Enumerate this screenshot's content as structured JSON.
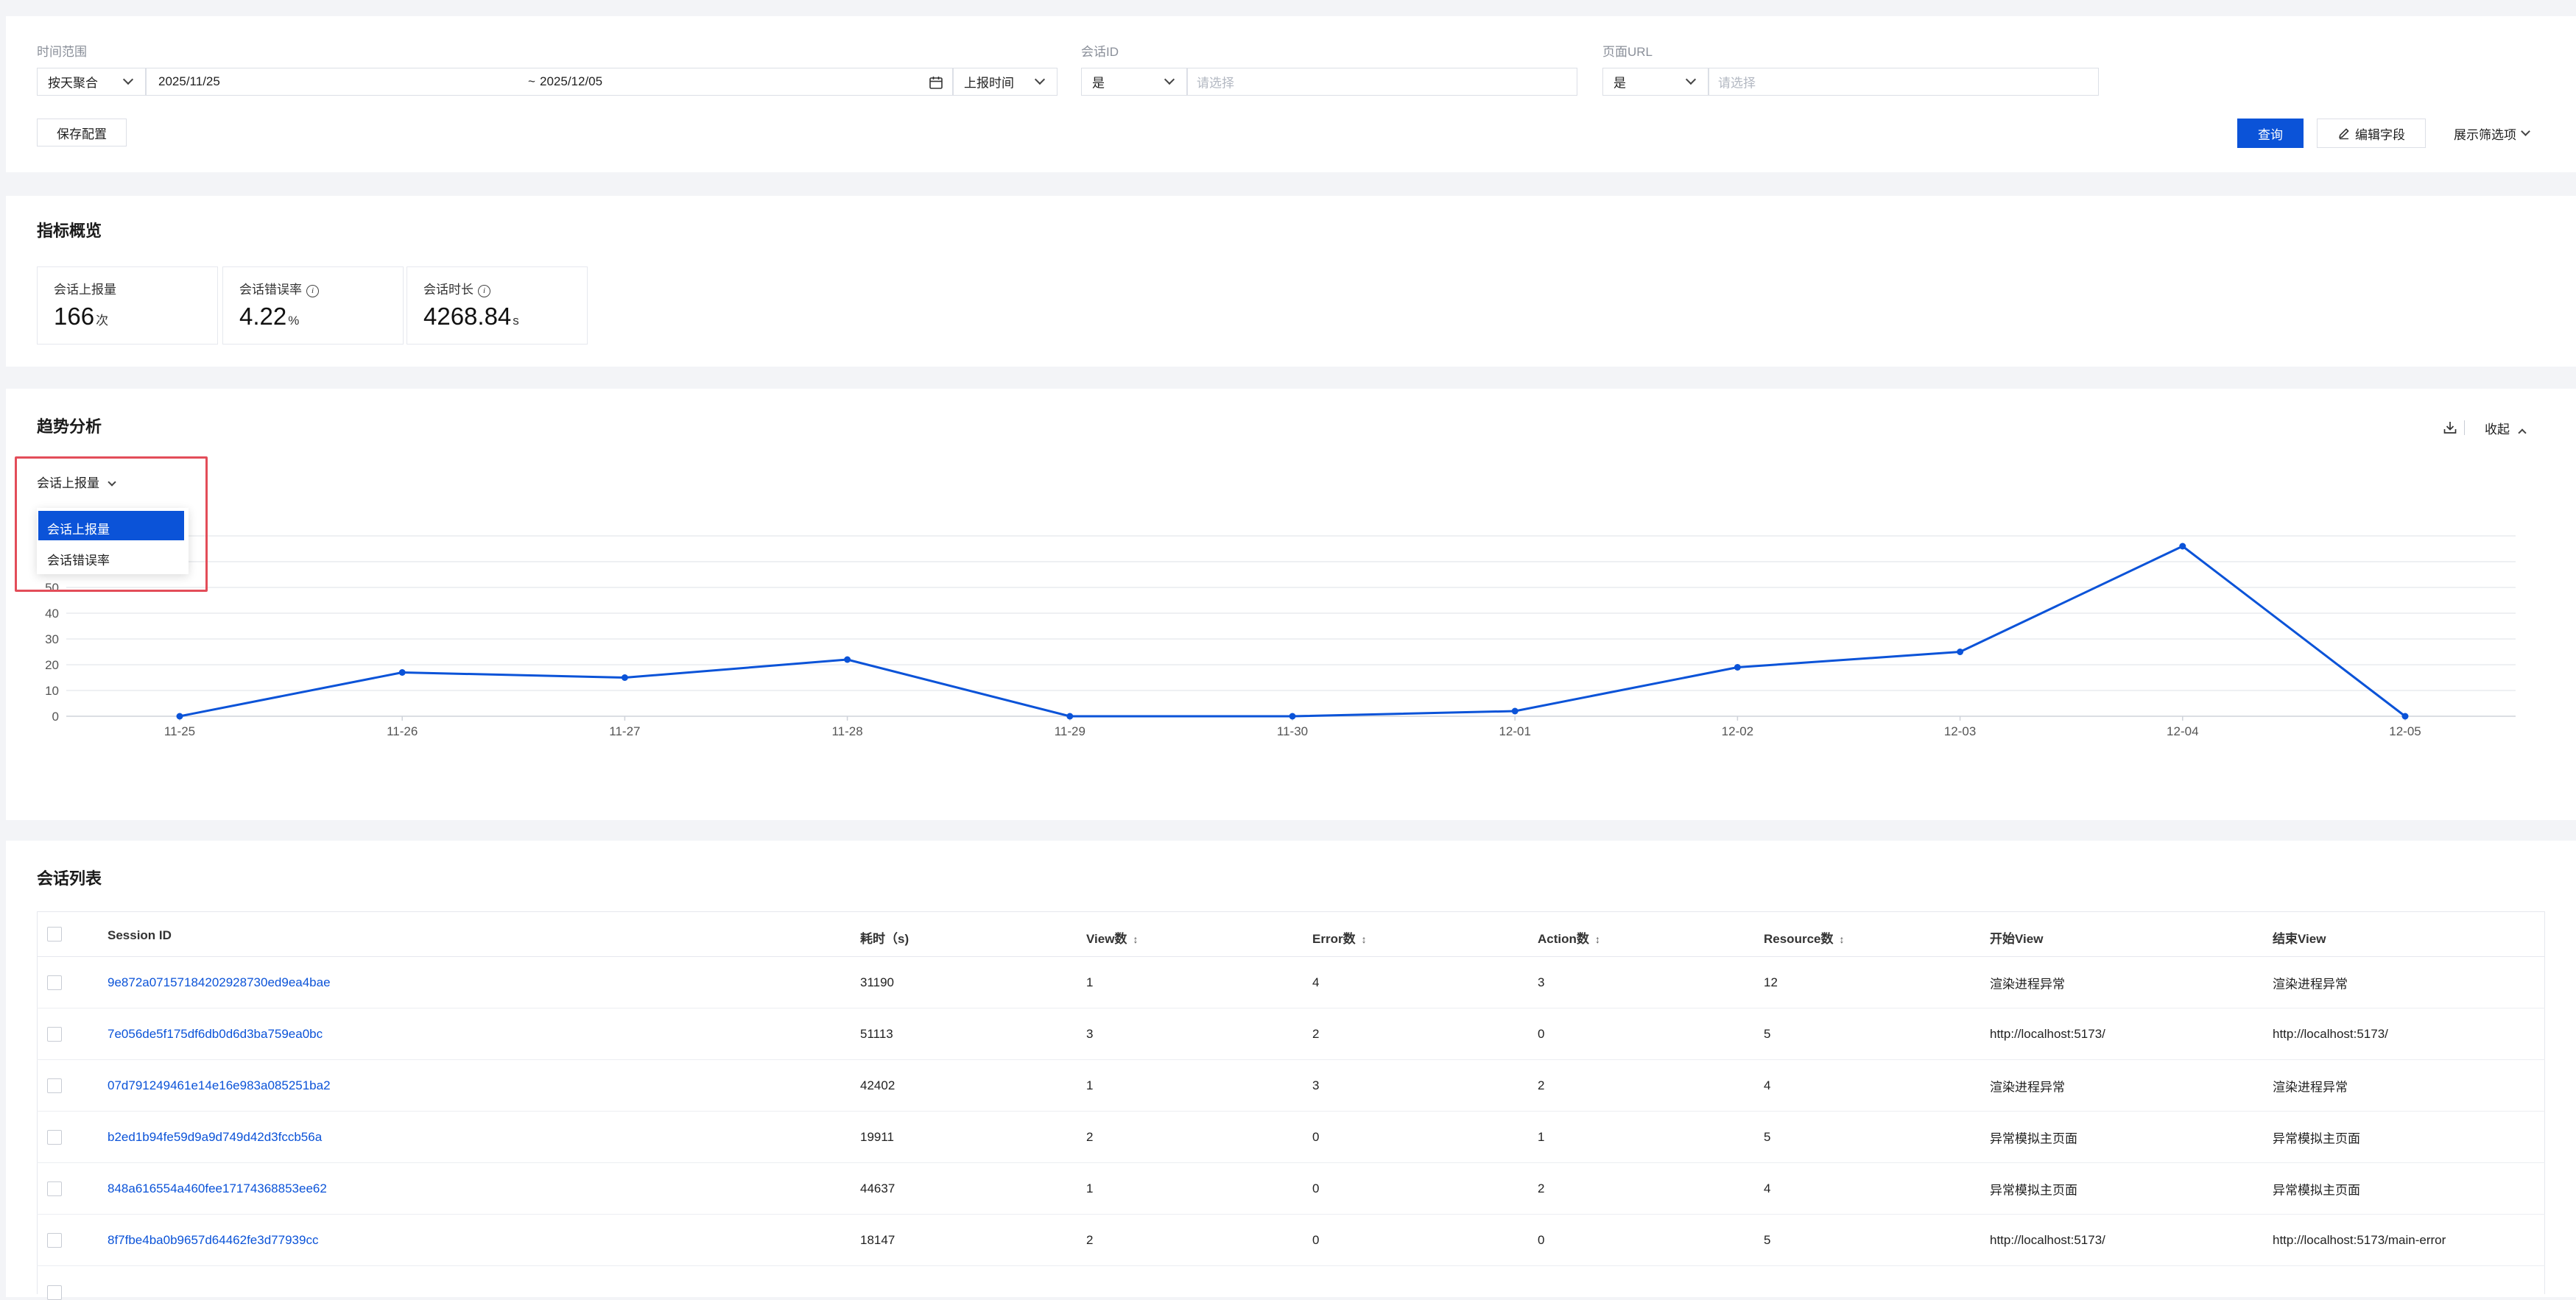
{
  "filters": {
    "time_range_label": "时间范围",
    "aggregation": "按天聚合",
    "date_start": "2025/11/25",
    "date_sep": "~",
    "date_end": "2025/12/05",
    "time_type": "上报时间",
    "session_id_label": "会话ID",
    "session_id_op": "是",
    "session_id_placeholder": "请选择",
    "page_url_label": "页面URL",
    "page_url_op": "是",
    "page_url_placeholder": "请选择",
    "save_config": "保存配置",
    "query": "查询",
    "edit_fields": "编辑字段",
    "show_filters": "展示筛选项"
  },
  "overview": {
    "title": "指标概览",
    "metrics": [
      {
        "name": "会话上报量",
        "value": "166",
        "unit": "次",
        "info": false
      },
      {
        "name": "会话错误率",
        "value": "4.22",
        "unit": "%",
        "info": true
      },
      {
        "name": "会话时长",
        "value": "4268.84",
        "unit": "s",
        "info": true
      }
    ]
  },
  "trend": {
    "title": "趋势分析",
    "collapse": "收起",
    "metric_select": "会话上报量",
    "dropdown_options": [
      "会话上报量",
      "会话错误率"
    ],
    "selected_option": "会话上报量",
    "colors": {
      "line": "#0b53d8",
      "highlight": "#e34d59",
      "primary": "#0b53d8"
    }
  },
  "chart_data": {
    "type": "line",
    "x": [
      "11-25",
      "11-26",
      "11-27",
      "11-28",
      "11-29",
      "11-30",
      "12-01",
      "12-02",
      "12-03",
      "12-04",
      "12-05"
    ],
    "series": [
      {
        "values": [
          0,
          17,
          15,
          22,
          0,
          0,
          2,
          19,
          25,
          66,
          0
        ]
      }
    ],
    "yticks": [
      0,
      10,
      20,
      30,
      40,
      50
    ],
    "ylim": [
      0,
      70
    ],
    "grid": true
  },
  "session_list": {
    "title": "会话列表",
    "columns": [
      "Session ID",
      "耗时（s)",
      "View数",
      "Error数",
      "Action数",
      "Resource数",
      "开始View",
      "结束View"
    ],
    "sortable": [
      "↕",
      "↕",
      "↕",
      "↕"
    ],
    "rows": [
      [
        "9e872a07157184202928730ed9ea4bae",
        "31190",
        "1",
        "4",
        "3",
        "12",
        "渲染进程异常",
        "渲染进程异常"
      ],
      [
        "7e056de5f175df6db0d6d3ba759ea0bc",
        "51113",
        "3",
        "2",
        "0",
        "5",
        "http://localhost:5173/",
        "http://localhost:5173/"
      ],
      [
        "07d791249461e14e16e983a085251ba2",
        "42402",
        "1",
        "3",
        "2",
        "4",
        "渲染进程异常",
        "渲染进程异常"
      ],
      [
        "b2ed1b94fe59d9a9d749d42d3fccb56a",
        "19911",
        "2",
        "0",
        "1",
        "5",
        "异常模拟主页面",
        "异常模拟主页面"
      ],
      [
        "848a616554a460fee17174368853ee62",
        "44637",
        "1",
        "0",
        "2",
        "4",
        "异常模拟主页面",
        "异常模拟主页面"
      ],
      [
        "8f7fbe4ba0b9657d64462fe3d77939cc",
        "18147",
        "2",
        "0",
        "0",
        "5",
        "http://localhost:5173/",
        "http://localhost:5173/main-error"
      ]
    ]
  }
}
